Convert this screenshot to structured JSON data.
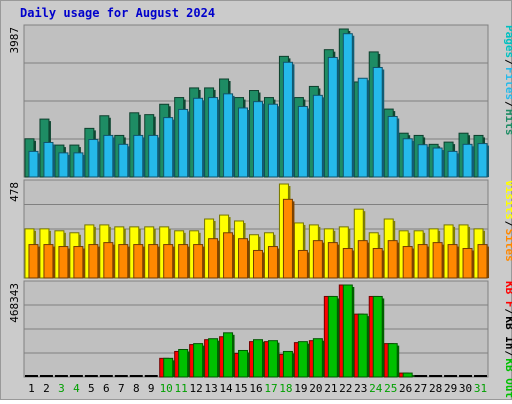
{
  "chart_data": {
    "type": "bar",
    "title": "Daily usage for August 2024",
    "categories": [
      "1",
      "2",
      "3",
      "4",
      "5",
      "6",
      "7",
      "8",
      "9",
      "10",
      "11",
      "12",
      "13",
      "14",
      "15",
      "16",
      "17",
      "18",
      "19",
      "20",
      "21",
      "22",
      "23",
      "24",
      "25",
      "26",
      "27",
      "28",
      "29",
      "30",
      "31"
    ],
    "weekend_days": [
      "3",
      "4",
      "10",
      "11",
      "17",
      "18",
      "24",
      "25",
      "31"
    ],
    "panels": [
      {
        "name": "hits-files-pages",
        "max_label": "3987",
        "ylim": [
          0,
          3987
        ],
        "legend_position": "right",
        "legend": [
          "Pages",
          "Files",
          "Hits"
        ],
        "series": [
          {
            "name": "Hits",
            "color": "#1e8c64",
            "values": [
              1030,
              1560,
              860,
              860,
              1310,
              1650,
              1120,
              1730,
              1680,
              1960,
              2140,
              2400,
              2400,
              2640,
              2140,
              2330,
              2140,
              3250,
              2140,
              2440,
              3430,
              3987,
              2560,
              3370,
              1830,
              1180,
              1120,
              880,
              940,
              1180,
              1120
            ]
          },
          {
            "name": "Files",
            "color": "#25b9ea",
            "values": [
              690,
              930,
              650,
              650,
              1010,
              1120,
              880,
              1120,
              1120,
              1600,
              1820,
              2120,
              2140,
              2240,
              1860,
              2030,
              1960,
              3090,
              1900,
              2200,
              3220,
              3860,
              2660,
              2950,
              1630,
              1030,
              870,
              780,
              690,
              880,
              900
            ]
          },
          {
            "name": "Pages",
            "color": "#00c0c0",
            "values": []
          }
        ]
      },
      {
        "name": "visits-sites",
        "max_label": "478",
        "ylim": [
          0,
          478
        ],
        "legend_position": "right",
        "legend": [
          "Visits",
          "Sites"
        ],
        "series": [
          {
            "name": "Visits",
            "color": "#ffff00",
            "values": [
              250,
              250,
              240,
              230,
              270,
              270,
              260,
              260,
              260,
              260,
              240,
              240,
              300,
              320,
              290,
              220,
              230,
              478,
              280,
              270,
              250,
              260,
              350,
              230,
              300,
              240,
              240,
              250,
              270,
              270,
              250
            ]
          },
          {
            "name": "Sites",
            "color": "#ff8800",
            "values": [
              170,
              170,
              160,
              160,
              170,
              180,
              170,
              170,
              170,
              170,
              170,
              170,
              200,
              230,
              200,
              140,
              160,
              400,
              140,
              190,
              180,
              150,
              190,
              150,
              190,
              160,
              170,
              180,
              170,
              150,
              170
            ]
          }
        ]
      },
      {
        "name": "kbytes",
        "max_label": "468343",
        "ylim": [
          0,
          468343
        ],
        "legend_position": "right",
        "legend": [
          "KB F",
          "KB In",
          "KB Out"
        ],
        "series": [
          {
            "name": "KB F",
            "color": "#ff0000",
            "values": [
              0,
              0,
              0,
              0,
              0,
              0,
              0,
              0,
              0,
              95000,
              130000,
              165000,
              190000,
              205000,
              120000,
              180000,
              180000,
              115000,
              175000,
              185000,
              410000,
              468343,
              320000,
              410000,
              170000,
              20000,
              0,
              0,
              0,
              0,
              0
            ]
          },
          {
            "name": "KB Out",
            "color": "#00c000",
            "values": [
              0,
              0,
              0,
              0,
              0,
              0,
              0,
              0,
              0,
              95000,
              140000,
              170000,
              195000,
              225000,
              135000,
              190000,
              185000,
              130000,
              180000,
              195000,
              410000,
              468343,
              320000,
              410000,
              170000,
              20000,
              0,
              0,
              0,
              0,
              0
            ]
          }
        ]
      }
    ]
  }
}
